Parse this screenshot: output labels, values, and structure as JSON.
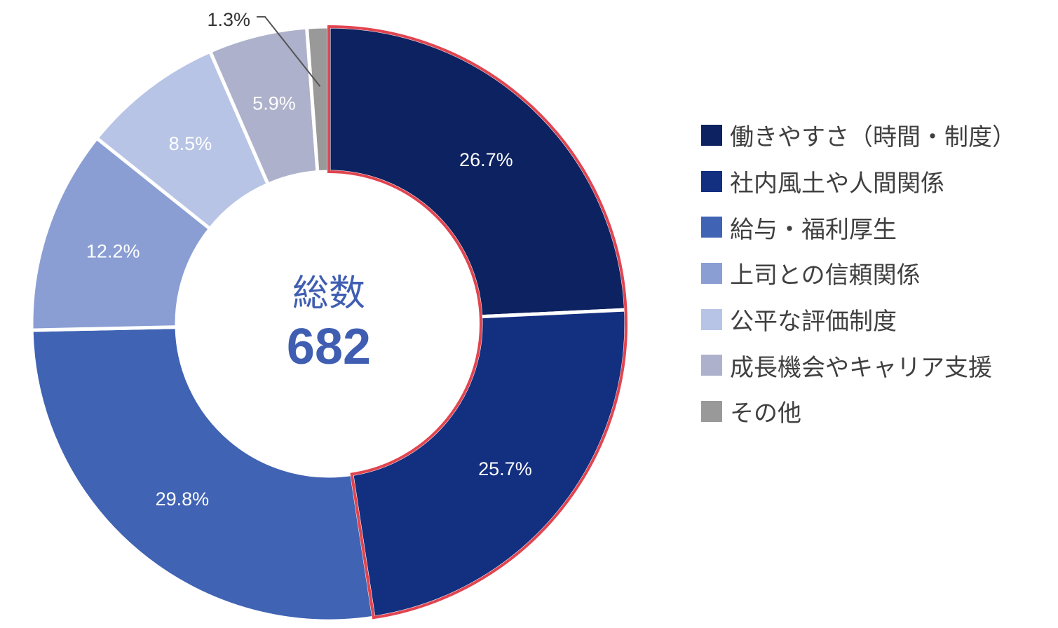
{
  "chart_data": {
    "type": "donut",
    "center": {
      "title": "総数",
      "total": "682"
    },
    "slices": [
      {
        "name": "働きやすさ（時間・制度）",
        "value": 26.7,
        "label": "26.7%",
        "color": "#0d2260",
        "highlighted": true
      },
      {
        "name": "社内風土や人間関係",
        "value": 25.7,
        "label": "25.7%",
        "color": "#132f80",
        "highlighted": true
      },
      {
        "name": "給与・福利厚生",
        "value": 29.8,
        "label": "29.8%",
        "color": "#4063b4",
        "highlighted": false
      },
      {
        "name": "上司との信頼関係",
        "value": 12.2,
        "label": "12.2%",
        "color": "#8a9ed4",
        "highlighted": false
      },
      {
        "name": "公平な評価制度",
        "value": 8.5,
        "label": "8.5%",
        "color": "#b7c4e6",
        "highlighted": false
      },
      {
        "name": "成長機会やキャリア支援",
        "value": 5.9,
        "label": "5.9%",
        "color": "#adb1cb",
        "highlighted": false
      },
      {
        "name": "その他",
        "value": 1.3,
        "label": "1.3%",
        "color": "#999999",
        "highlighted": false
      }
    ],
    "legend_position": "right",
    "highlight_color": "#e04550"
  }
}
